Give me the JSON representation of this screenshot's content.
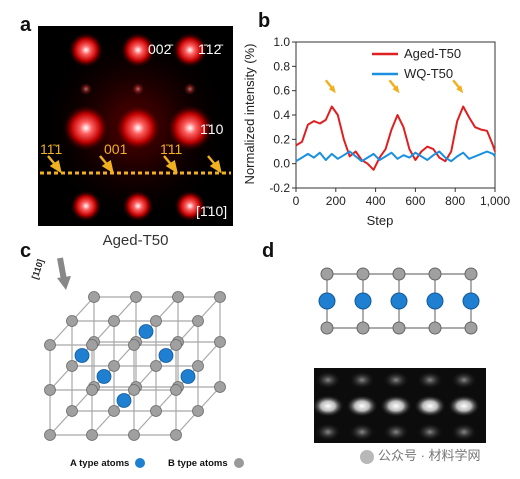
{
  "panel_labels": {
    "a": "a",
    "b": "b",
    "c": "c",
    "d": "d"
  },
  "panel_a": {
    "caption": "Aged-T50",
    "spot_labels": [
      "002̄",
      "1̄12̄",
      "1̄10",
      "11̄1",
      "001",
      "1̄11",
      "[1̄10]"
    ]
  },
  "chart_data": {
    "type": "line",
    "xlabel": "Step",
    "ylabel": "Normalized intensity (%)",
    "xlim": [
      0,
      1000
    ],
    "ylim": [
      -0.2,
      1.0
    ],
    "xticks": [
      "0",
      "200",
      "400",
      "600",
      "800",
      "1,000"
    ],
    "yticks": [
      "-0.2",
      "0.0",
      "0.2",
      "0.4",
      "0.6",
      "0.8",
      "1.0"
    ],
    "legend_position": "top-right",
    "series": [
      {
        "name": "Aged-T50",
        "color": "#e02020",
        "x": [
          0,
          30,
          60,
          90,
          120,
          150,
          180,
          210,
          240,
          270,
          300,
          330,
          360,
          390,
          420,
          450,
          480,
          510,
          540,
          570,
          600,
          630,
          660,
          690,
          720,
          750,
          780,
          810,
          840,
          870,
          900,
          930,
          960,
          990,
          1000
        ],
        "values": [
          0.15,
          0.18,
          0.32,
          0.35,
          0.33,
          0.36,
          0.47,
          0.4,
          0.2,
          0.06,
          0.1,
          0.03,
          0.0,
          -0.05,
          0.05,
          0.12,
          0.28,
          0.4,
          0.3,
          0.12,
          0.03,
          0.1,
          0.14,
          0.12,
          0.05,
          0.02,
          0.1,
          0.35,
          0.47,
          0.38,
          0.3,
          0.28,
          0.27,
          0.15,
          0.1
        ]
      },
      {
        "name": "WQ-T50",
        "color": "#1a90e0",
        "x": [
          0,
          30,
          60,
          90,
          120,
          150,
          180,
          210,
          240,
          270,
          300,
          330,
          360,
          390,
          420,
          450,
          480,
          510,
          540,
          570,
          600,
          630,
          660,
          690,
          720,
          750,
          780,
          810,
          840,
          870,
          900,
          930,
          960,
          990,
          1000
        ],
        "values": [
          0.02,
          0.05,
          0.08,
          0.05,
          0.09,
          0.03,
          0.08,
          0.04,
          0.07,
          0.1,
          0.06,
          0.02,
          0.05,
          0.08,
          0.03,
          0.06,
          0.09,
          0.04,
          0.07,
          0.05,
          0.09,
          0.06,
          0.03,
          0.07,
          0.1,
          0.05,
          0.02,
          0.06,
          0.09,
          0.04,
          0.06,
          0.08,
          0.1,
          0.08,
          0.06
        ]
      }
    ],
    "arrow_steps": [
      180,
      500,
      820
    ]
  },
  "panel_c": {
    "direction_label": "[110]",
    "legend_a": "A type atoms",
    "legend_b": "B type atoms",
    "color_a": "#1f7fd0",
    "color_b": "#9a9a9a"
  },
  "watermark": "公众号 · 材料学网"
}
